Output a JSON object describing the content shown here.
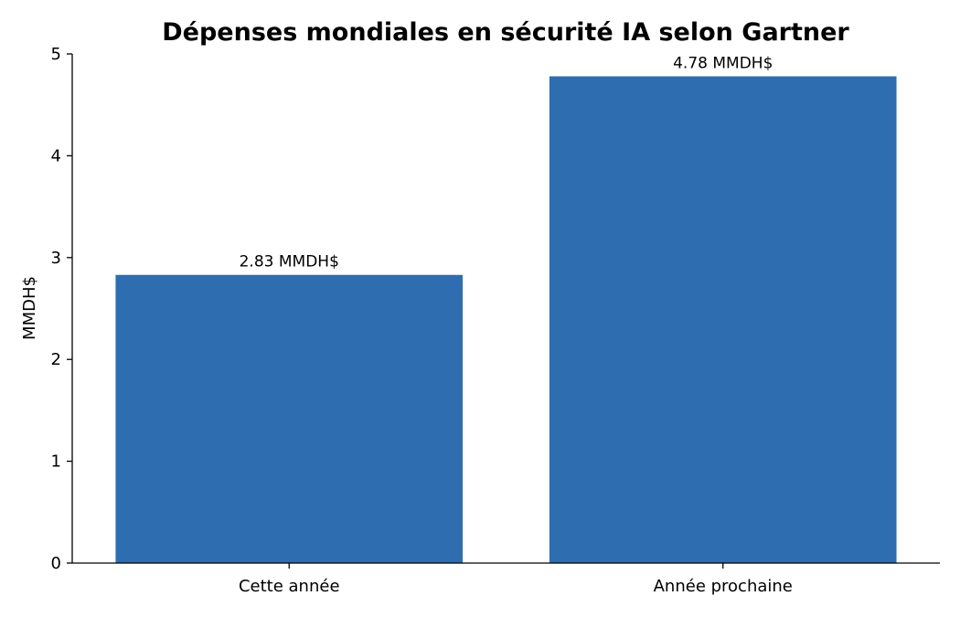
{
  "chart_data": {
    "type": "bar",
    "title": "Dépenses mondiales en sécurité IA selon Gartner",
    "xlabel": "",
    "ylabel": "MMDH$",
    "categories": [
      "Cette année",
      "Année prochaine"
    ],
    "values": [
      2.83,
      4.78
    ],
    "data_labels": [
      "2.83 MMDH$",
      "4.78 MMDH$"
    ],
    "ylim": [
      0,
      5
    ],
    "yticks": [
      0,
      1,
      2,
      3,
      4,
      5
    ],
    "grid": false,
    "legend": "none",
    "bar_color": "#2d6db0"
  }
}
